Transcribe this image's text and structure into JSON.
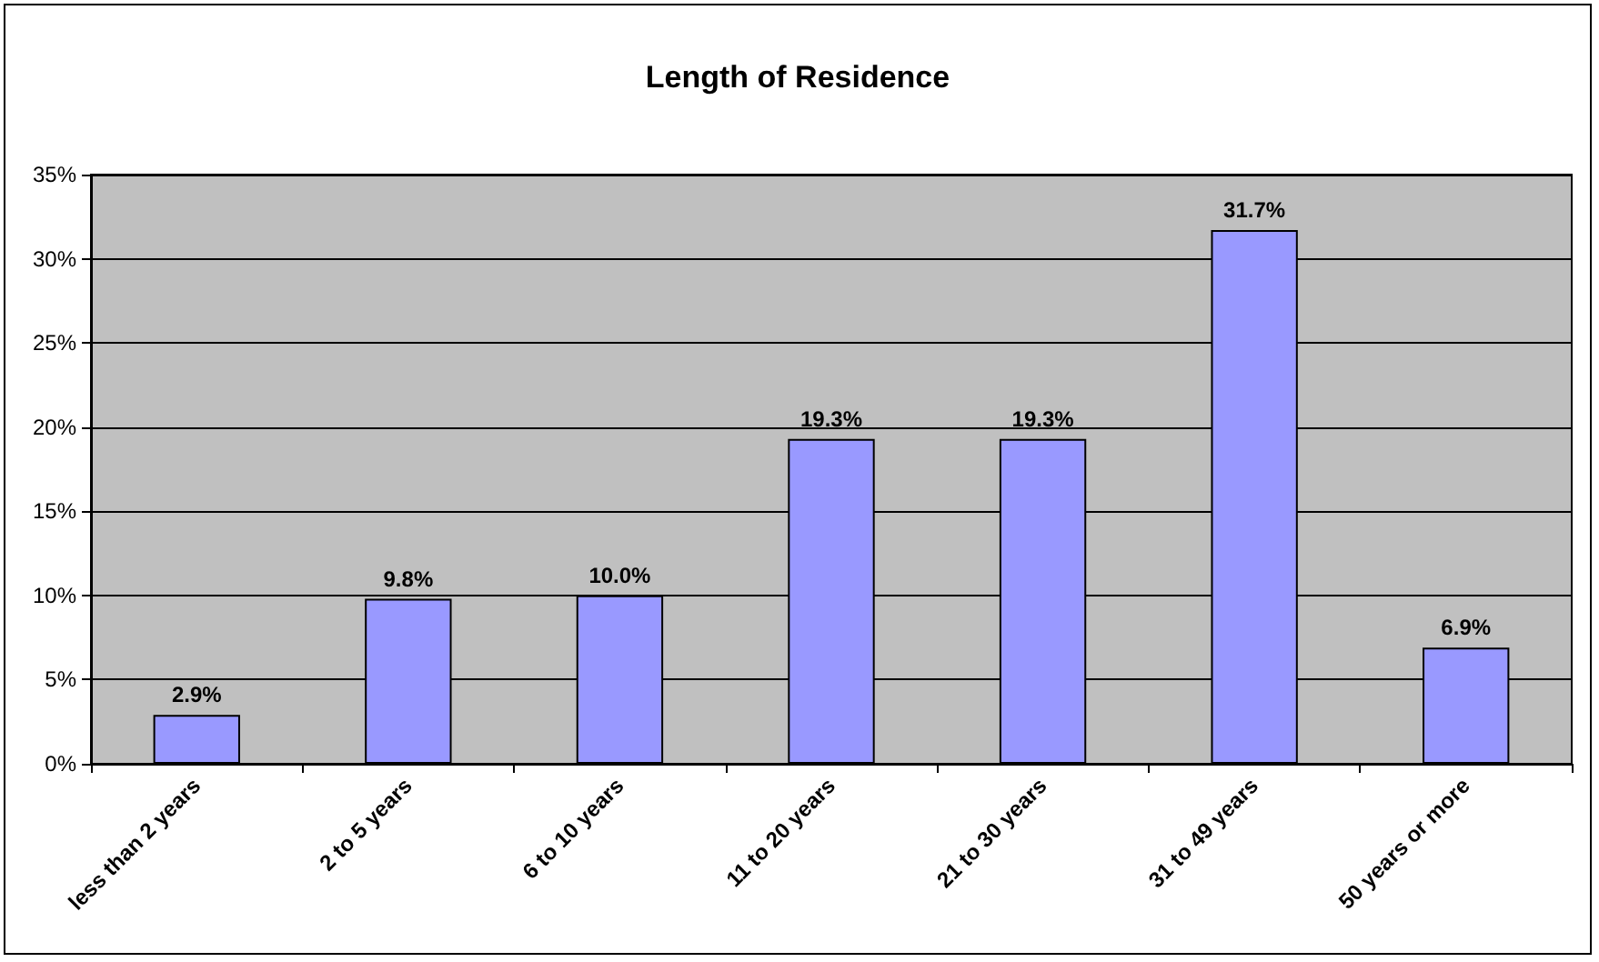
{
  "chart_data": {
    "type": "bar",
    "title": "Length of Residence",
    "categories": [
      "less than 2 years",
      "2 to 5 years",
      "6 to 10 years",
      "11 to 20 years",
      "21 to 30 years",
      "31 to 49 years",
      "50 years or more"
    ],
    "values": [
      2.9,
      9.8,
      10.0,
      19.3,
      19.3,
      31.7,
      6.9
    ],
    "value_labels": [
      "2.9%",
      "9.8%",
      "10.0%",
      "19.3%",
      "19.3%",
      "31.7%",
      "6.9%"
    ],
    "color": "#9999ff",
    "ylim": [
      0,
      35
    ],
    "yticks": [
      {
        "value": 0,
        "label": "0%"
      },
      {
        "value": 5,
        "label": "5%"
      },
      {
        "value": 10,
        "label": "10%"
      },
      {
        "value": 15,
        "label": "15%"
      },
      {
        "value": 20,
        "label": "20%"
      },
      {
        "value": 25,
        "label": "25%"
      },
      {
        "value": 30,
        "label": "30%"
      },
      {
        "value": 35,
        "label": "35%"
      }
    ],
    "grid": "y"
  }
}
